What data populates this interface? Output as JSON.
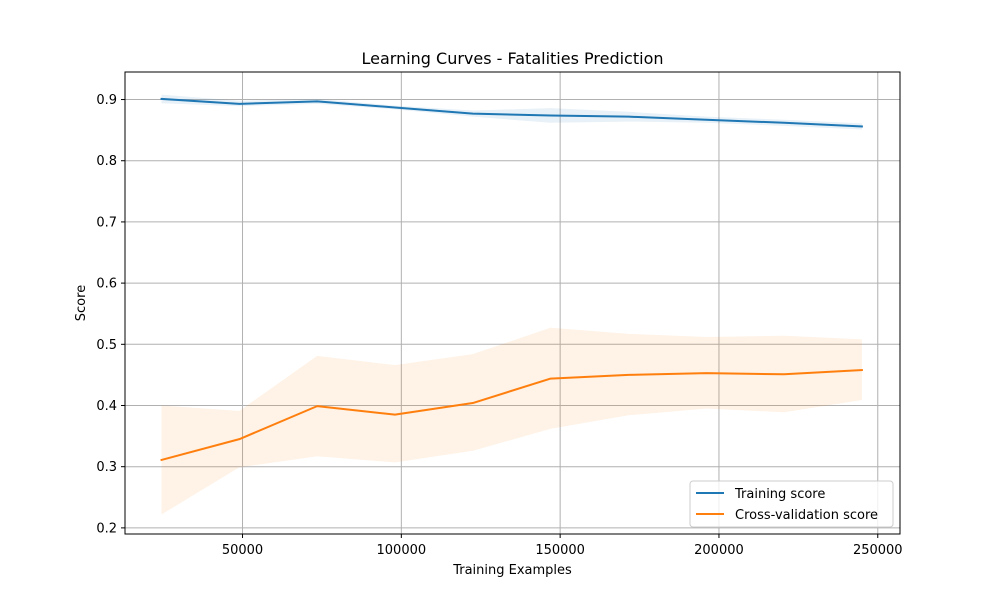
{
  "chart_data": {
    "type": "line",
    "title": "Learning Curves - Fatalities Prediction",
    "xlabel": "Training Examples",
    "ylabel": "Score",
    "xlim": [
      13000,
      257000
    ],
    "ylim": [
      0.19,
      0.945
    ],
    "xticks": [
      50000,
      100000,
      150000,
      200000,
      250000
    ],
    "xtick_labels": [
      "50000",
      "100000",
      "150000",
      "200000",
      "250000"
    ],
    "yticks": [
      0.2,
      0.3,
      0.4,
      0.5,
      0.6,
      0.7,
      0.8,
      0.9
    ],
    "ytick_labels": [
      "0.2",
      "0.3",
      "0.4",
      "0.5",
      "0.6",
      "0.7",
      "0.8",
      "0.9"
    ],
    "grid": true,
    "legend_position": "bottom-right",
    "x": [
      24500,
      49000,
      73500,
      98000,
      122500,
      147000,
      171500,
      196000,
      220500,
      245000
    ],
    "series": [
      {
        "name": "Training score",
        "color": "#1f77b4",
        "values": [
          0.901,
          0.893,
          0.897,
          0.887,
          0.877,
          0.874,
          0.872,
          0.867,
          0.862,
          0.856
        ],
        "band_lower": [
          0.894,
          0.889,
          0.893,
          0.884,
          0.872,
          0.862,
          0.864,
          0.862,
          0.857,
          0.851
        ],
        "band_upper": [
          0.908,
          0.898,
          0.901,
          0.89,
          0.882,
          0.886,
          0.88,
          0.872,
          0.867,
          0.861
        ]
      },
      {
        "name": "Cross-validation score",
        "color": "#ff7f0e",
        "values": [
          0.311,
          0.345,
          0.399,
          0.385,
          0.404,
          0.444,
          0.45,
          0.453,
          0.451,
          0.458
        ],
        "band_lower": [
          0.222,
          0.299,
          0.317,
          0.307,
          0.326,
          0.362,
          0.384,
          0.395,
          0.389,
          0.409
        ],
        "band_upper": [
          0.4,
          0.391,
          0.481,
          0.466,
          0.484,
          0.527,
          0.517,
          0.512,
          0.514,
          0.508
        ]
      }
    ]
  }
}
